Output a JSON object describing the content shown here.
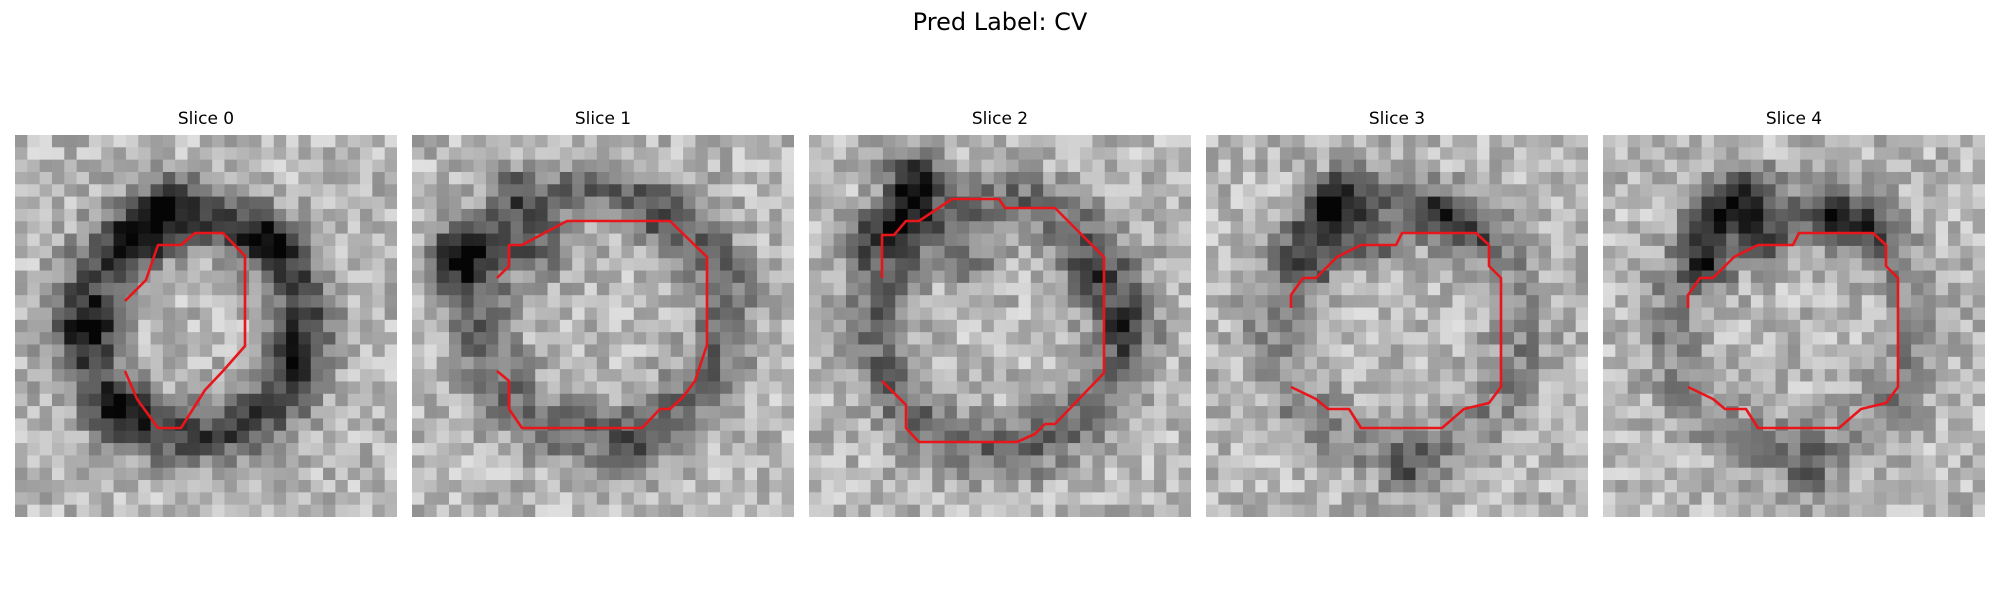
{
  "title": "Pred Label: CV",
  "panels": [
    {
      "title": "Slice 0"
    },
    {
      "title": "Slice 1"
    },
    {
      "title": "Slice 2"
    },
    {
      "title": "Slice 3"
    },
    {
      "title": "Slice 4"
    }
  ],
  "contour_color": "#e8151b"
}
